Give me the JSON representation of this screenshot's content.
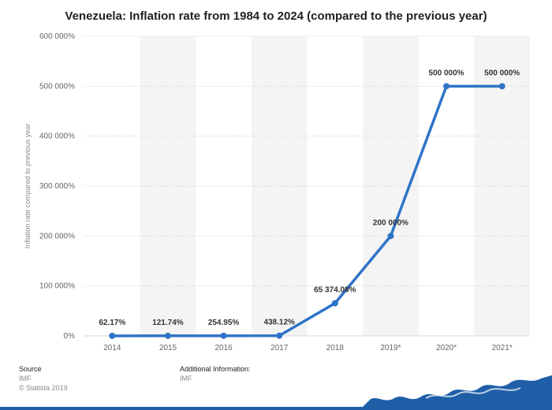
{
  "title": "Venezuela: Inflation rate from 1984 to 2024 (compared to the previous year)",
  "chart_data": {
    "type": "line",
    "title": "Venezuela: Inflation rate from 1984 to 2024 (compared to the previous year)",
    "xlabel": "",
    "ylabel": "Inflation rate compared to previous year",
    "categories": [
      "2014",
      "2015",
      "2016",
      "2017",
      "2018",
      "2019*",
      "2020*",
      "2021*"
    ],
    "values": [
      62.17,
      121.74,
      254.95,
      438.12,
      65374.08,
      200000,
      500000,
      500000
    ],
    "data_labels": [
      "62.17%",
      "121.74%",
      "254.95%",
      "438.12%",
      "65 374.08%",
      "200 000%",
      "500 000%",
      "500 000%"
    ],
    "ylim": [
      0,
      600000
    ],
    "yticks": [
      0,
      100000,
      200000,
      300000,
      400000,
      500000,
      600000
    ],
    "ytick_labels": [
      "0%",
      "100 000%",
      "200 000%",
      "300 000%",
      "400 000%",
      "500 000%",
      "600 000%"
    ],
    "grid": true,
    "line_color": "#2f74c8"
  },
  "footer": {
    "source_label": "Source",
    "source_value": "IMF",
    "copyright": "© Statista 2019",
    "additional_label": "Additional Information:",
    "additional_value": "IMF"
  },
  "colors": {
    "line": "#2f74c8",
    "band": "#f4f4f4",
    "grid": "#dddddd",
    "wave": "#1f5fa8"
  }
}
